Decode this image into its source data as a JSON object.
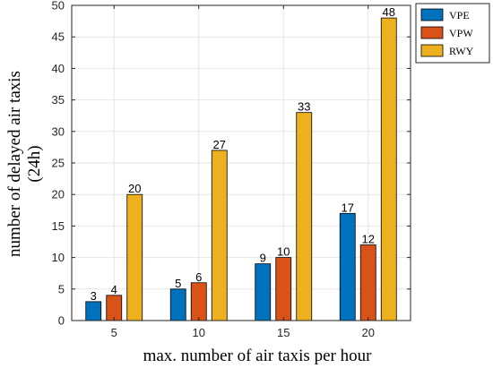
{
  "chart_data": {
    "type": "bar",
    "title": "",
    "xlabel": "max. number of air taxis per hour",
    "ylabel_lines": [
      "number of delayed air taxis",
      "(24h)"
    ],
    "categories": [
      "5",
      "10",
      "15",
      "20"
    ],
    "ylim": [
      0,
      50
    ],
    "yticks": [
      0,
      5,
      10,
      15,
      20,
      25,
      30,
      35,
      40,
      45,
      50
    ],
    "grid": true,
    "legend_position": "top-right",
    "series": [
      {
        "name": "VPE",
        "color": "#0072BD",
        "values": [
          3,
          5,
          9,
          17
        ]
      },
      {
        "name": "VPW",
        "color": "#D95319",
        "values": [
          4,
          6,
          10,
          12
        ]
      },
      {
        "name": "RWY",
        "color": "#EDB120",
        "values": [
          20,
          27,
          33,
          48
        ]
      }
    ]
  }
}
